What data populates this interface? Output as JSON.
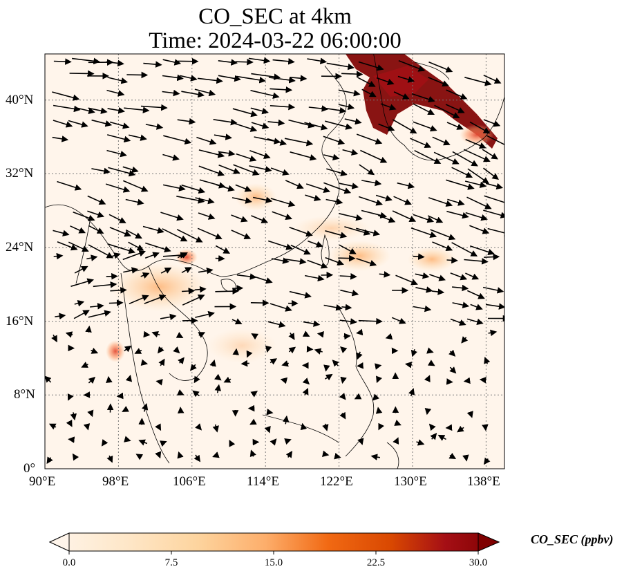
{
  "title": {
    "line1": "CO_SEC at 4km",
    "line2": "Time: 2024-03-22 06:00:00"
  },
  "map": {
    "lon_range": [
      90,
      140
    ],
    "lat_range": [
      0,
      45
    ],
    "x_ticks": [
      "90°E",
      "98°E",
      "106°E",
      "114°E",
      "122°E",
      "130°E",
      "138°E"
    ],
    "y_ticks": [
      "0°",
      "8°N",
      "16°N",
      "24°N",
      "32°N",
      "40°N"
    ],
    "gridlines": "dotted",
    "background_color": "#fff5eb",
    "hotspots_color_scale": "OrRd"
  },
  "colorbar": {
    "label": "CO_SEC (ppbv)",
    "ticks": [
      "0.0",
      "7.5",
      "15.0",
      "22.5",
      "30.0"
    ],
    "range": [
      0,
      30
    ],
    "colors": [
      "#fff5eb",
      "#fdd49e",
      "#fdae6b",
      "#f16913",
      "#d94801",
      "#a50f15",
      "#7f0000"
    ]
  }
}
